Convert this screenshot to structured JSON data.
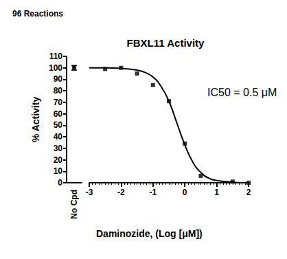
{
  "header": "96 Reactions",
  "chart_data": {
    "type": "scatter",
    "title": "FBXL11 Activity",
    "x_label": "Daminozide, (Log [μM])",
    "y_label": "% Activity",
    "annotation": "IC50 = 0.5 μM",
    "xlim": [
      -3,
      2
    ],
    "xticks": [
      -3,
      -2,
      -1,
      0,
      1,
      2
    ],
    "ylim": [
      0,
      110
    ],
    "yticks": [
      0,
      10,
      20,
      30,
      40,
      50,
      60,
      70,
      80,
      90,
      100,
      110
    ],
    "grid": false,
    "control": {
      "categories": [
        "No Cpd"
      ],
      "values": [
        100
      ],
      "errors": [
        2
      ],
      "color": "#000000",
      "marker": "square"
    },
    "series": [
      {
        "type": "scatter",
        "marker": "square",
        "color": "#000000",
        "x": [
          -2.5,
          -2,
          -1.5,
          -1,
          -0.5,
          0,
          0.5,
          1.5,
          2
        ],
        "values": [
          99,
          100,
          95,
          85,
          71,
          34,
          6,
          1,
          0
        ]
      },
      {
        "type": "line",
        "line_style": "solid",
        "color": "#000000",
        "x": [
          -3,
          -2.5,
          -2,
          -1.5,
          -1.25,
          -1,
          -0.75,
          -0.5,
          -0.25,
          0,
          0.25,
          0.5,
          0.75,
          1,
          1.5,
          2
        ],
        "values": [
          100,
          100,
          99.5,
          98,
          96,
          92,
          84,
          71,
          52,
          33,
          18,
          9,
          4,
          2,
          0.5,
          0
        ]
      }
    ]
  }
}
